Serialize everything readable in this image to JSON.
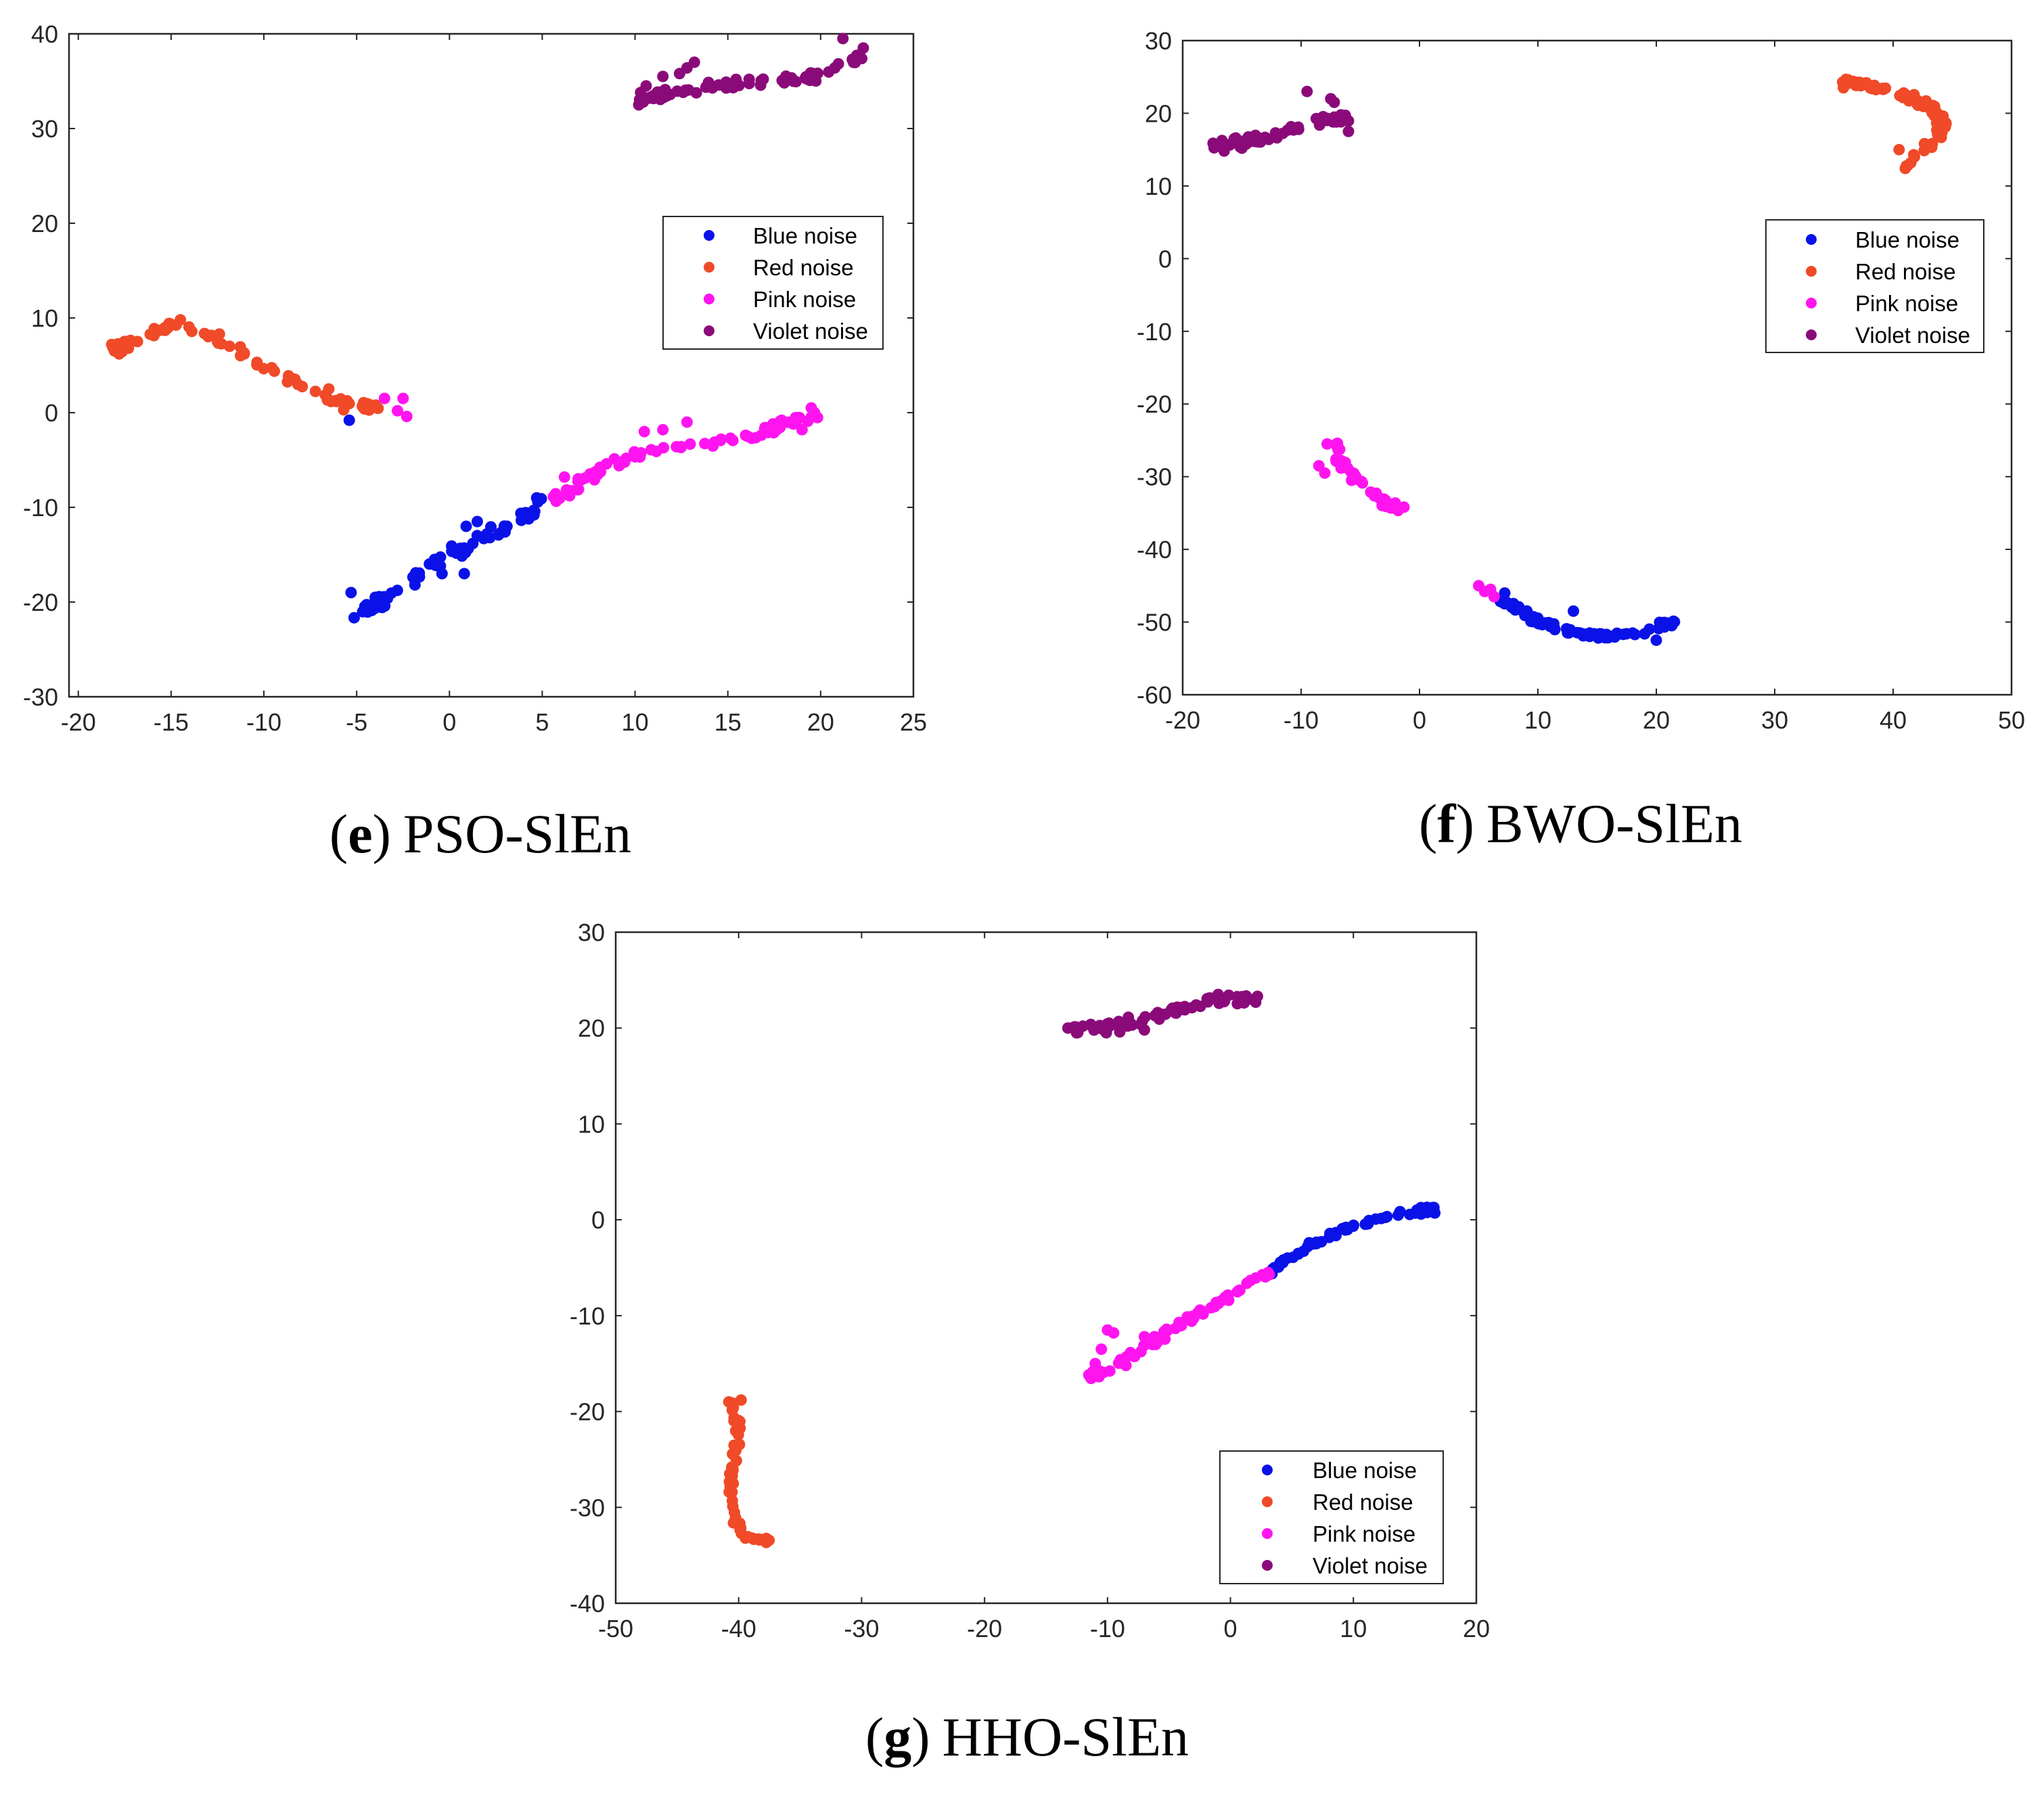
{
  "figure_title": "",
  "colors": {
    "Blue noise": "#0a12e8",
    "Red noise": "#f04a28",
    "Pink noise": "#ff14f0",
    "Violet noise": "#8b0a7a",
    "axes": "#262626"
  },
  "chart_data": [
    {
      "id": "e",
      "type": "scatter",
      "caption": {
        "open": "(",
        "letter": "e",
        "close": ")",
        "text": "PSO-SlEn"
      },
      "xlim": [
        -20.5,
        25
      ],
      "ylim": [
        -30,
        40
      ],
      "xticks": [
        -20,
        -15,
        -10,
        -5,
        0,
        5,
        10,
        15,
        20,
        25
      ],
      "yticks": [
        -30,
        -20,
        -10,
        0,
        10,
        20,
        30,
        40
      ],
      "legend": {
        "position": "right-middle",
        "entries": [
          "Blue noise",
          "Red noise",
          "Pink noise",
          "Violet noise"
        ]
      },
      "series": [
        {
          "name": "Blue noise",
          "curve": [
            [
              -5,
              -21.5
            ],
            [
              -3,
              -19
            ],
            [
              0,
              -15
            ],
            [
              3,
              -12
            ],
            [
              5,
              -9.5
            ]
          ],
          "n": 65,
          "jitter": 0.5,
          "extra": [
            [
              -5.3,
              -19
            ],
            [
              -4,
              -19.5
            ],
            [
              -0.4,
              -17
            ],
            [
              0.8,
              -17
            ],
            [
              0.9,
              -12
            ],
            [
              1.5,
              -11.5
            ],
            [
              -0.8,
              -15.5
            ],
            [
              -5.4,
              -0.8
            ],
            [
              4.7,
              -9
            ]
          ]
        },
        {
          "name": "Red noise",
          "curve": [
            [
              -18,
              6.5
            ],
            [
              -17,
              7.8
            ],
            [
              -15,
              9.2
            ],
            [
              -12.5,
              8
            ],
            [
              -10,
              5
            ],
            [
              -7,
              1.8
            ],
            [
              -5,
              1
            ],
            [
              -4,
              0.5
            ]
          ],
          "n": 75,
          "jitter": 0.35,
          "extra": [
            [
              -18.2,
              7.2
            ],
            [
              -17.8,
              6.2
            ],
            [
              -17.5,
              7.5
            ],
            [
              -17.3,
              6.8
            ],
            [
              -5.7,
              0.3
            ],
            [
              -14.5,
              9.8
            ],
            [
              -6.5,
              2.5
            ]
          ]
        },
        {
          "name": "Pink noise",
          "curve": [
            [
              5.5,
              -9.5
            ],
            [
              7,
              -7.5
            ],
            [
              8,
              -6
            ],
            [
              10,
              -4.5
            ],
            [
              13,
              -3.5
            ],
            [
              16,
              -2.5
            ],
            [
              18.5,
              -1
            ],
            [
              19.8,
              0
            ]
          ],
          "n": 80,
          "jitter": 0.4,
          "extra": [
            [
              -3.5,
              1.5
            ],
            [
              -2.5,
              1.5
            ],
            [
              -2.8,
              0.2
            ],
            [
              -2.3,
              -0.4
            ],
            [
              11.5,
              -1.8
            ],
            [
              12.8,
              -1
            ],
            [
              10.5,
              -2
            ],
            [
              19,
              -1.8
            ],
            [
              19.5,
              0.5
            ],
            [
              6.2,
              -6.8
            ]
          ]
        },
        {
          "name": "Violet noise",
          "curve": [
            [
              10,
              33
            ],
            [
              11.5,
              33.5
            ],
            [
              14,
              34.5
            ],
            [
              17,
              35
            ],
            [
              20,
              35.5
            ],
            [
              22,
              37.5
            ]
          ],
          "n": 70,
          "jitter": 0.45,
          "extra": [
            [
              10.2,
              32.5
            ],
            [
              10.6,
              34.5
            ],
            [
              10.3,
              33.8
            ],
            [
              12.4,
              35.8
            ],
            [
              13.2,
              37
            ],
            [
              11.5,
              35.5
            ],
            [
              21.2,
              39.5
            ],
            [
              22.3,
              38.5
            ],
            [
              14.5,
              34.6
            ],
            [
              12.8,
              36.4
            ]
          ]
        }
      ]
    },
    {
      "id": "f",
      "type": "scatter",
      "caption": {
        "open": "(",
        "letter": "f",
        "close": ")",
        "text": "BWO-SlEn"
      },
      "xlim": [
        -20,
        50
      ],
      "ylim": [
        -60,
        30
      ],
      "xticks": [
        -20,
        -10,
        0,
        10,
        20,
        30,
        40,
        50
      ],
      "yticks": [
        -60,
        -50,
        -40,
        -30,
        -20,
        -10,
        0,
        10,
        20,
        30
      ],
      "legend": {
        "position": "right-middle",
        "entries": [
          "Blue noise",
          "Red noise",
          "Pink noise",
          "Violet noise"
        ]
      },
      "series": [
        {
          "name": "Blue noise",
          "curve": [
            [
              7,
              -47
            ],
            [
              10,
              -50
            ],
            [
              13,
              -51.5
            ],
            [
              16,
              -52
            ],
            [
              19,
              -51.5
            ],
            [
              21.5,
              -49.5
            ]
          ],
          "n": 80,
          "jitter": 0.35,
          "extra": [
            [
              7.2,
              -46
            ],
            [
              13,
              -48.5
            ],
            [
              20,
              -52.5
            ],
            [
              21.3,
              -50.5
            ]
          ]
        },
        {
          "name": "Red noise",
          "curve": [
            [
              35.5,
              24.5
            ],
            [
              38,
              23.8
            ],
            [
              41,
              22.5
            ],
            [
              43.5,
              20.5
            ],
            [
              44.3,
              18
            ],
            [
              43,
              15.5
            ],
            [
              41,
              12.5
            ]
          ],
          "n": 80,
          "jitter": 0.4,
          "extra": [
            [
              35.8,
              23.5
            ],
            [
              40.5,
              15
            ],
            [
              41.8,
              14
            ],
            [
              44,
              17
            ]
          ]
        },
        {
          "name": "Pink noise",
          "curve": [
            [
              -7.5,
              -24.5
            ],
            [
              -6.5,
              -28.5
            ],
            [
              -5,
              -31
            ],
            [
              -3,
              -33.5
            ],
            [
              -1.5,
              -34.5
            ]
          ],
          "n": 50,
          "jitter": 0.4,
          "extra": [
            [
              -8,
              -29.5
            ],
            [
              -8.5,
              -28.5
            ],
            [
              -7.8,
              -25.5
            ],
            [
              5,
              -45
            ],
            [
              5.5,
              -45.8
            ],
            [
              6.3,
              -46.5
            ],
            [
              6,
              -45.5
            ]
          ]
        },
        {
          "name": "Violet noise",
          "curve": [
            [
              -17,
              15.5
            ],
            [
              -14,
              16.5
            ],
            [
              -11,
              17.5
            ],
            [
              -8,
              19
            ],
            [
              -6,
              19.5
            ]
          ],
          "n": 70,
          "jitter": 0.6,
          "extra": [
            [
              -9.5,
              23
            ],
            [
              -7.2,
              21.5
            ],
            [
              -6,
              17.5
            ],
            [
              -7.5,
              22
            ],
            [
              -16.5,
              14.8
            ],
            [
              -15,
              15.2
            ]
          ]
        }
      ]
    },
    {
      "id": "g",
      "type": "scatter",
      "caption": {
        "open": "(",
        "letter": "g",
        "close": ")",
        "text": "HHO-SlEn"
      },
      "xlim": [
        -50,
        20
      ],
      "ylim": [
        -40,
        30
      ],
      "xticks": [
        -50,
        -40,
        -30,
        -20,
        -10,
        0,
        10,
        20
      ],
      "yticks": [
        -40,
        -30,
        -20,
        -10,
        0,
        10,
        20,
        30
      ],
      "legend": {
        "position": "bottom-right",
        "entries": [
          "Blue noise",
          "Red noise",
          "Pink noise",
          "Violet noise"
        ]
      },
      "series": [
        {
          "name": "Blue noise",
          "curve": [
            [
              3,
              -5.5
            ],
            [
              6,
              -3
            ],
            [
              9,
              -1
            ],
            [
              12,
              0
            ],
            [
              15,
              1
            ],
            [
              16.5,
              1
            ]
          ],
          "n": 60,
          "jitter": 0.3,
          "extra": [
            [
              16,
              1.3
            ],
            [
              15.5,
              0.6
            ]
          ]
        },
        {
          "name": "Red noise",
          "curve": [
            [
              -40.5,
              -18.5
            ],
            [
              -40,
              -22
            ],
            [
              -40.5,
              -26
            ],
            [
              -40.7,
              -30
            ],
            [
              -39.8,
              -33
            ],
            [
              -37.5,
              -33.5
            ]
          ],
          "n": 55,
          "jitter": 0.25,
          "extra": [
            [
              -40.8,
              -19
            ],
            [
              -39.8,
              -18.8
            ]
          ]
        },
        {
          "name": "Pink noise",
          "curve": [
            [
              -11.5,
              -16.5
            ],
            [
              -10,
              -15.5
            ],
            [
              -6,
              -12.5
            ],
            [
              -3,
              -10
            ],
            [
              0,
              -8
            ],
            [
              3,
              -5.5
            ]
          ],
          "n": 70,
          "jitter": 0.35,
          "extra": [
            [
              -10,
              -11.5
            ],
            [
              -9.5,
              -11.8
            ],
            [
              -10.5,
              -13.5
            ],
            [
              -7,
              -12.2
            ],
            [
              -11,
              -15
            ],
            [
              -8.5,
              -15.2
            ]
          ]
        },
        {
          "name": "Violet noise",
          "curve": [
            [
              -13,
              20
            ],
            [
              -10,
              20
            ],
            [
              -7,
              21
            ],
            [
              -4,
              22
            ],
            [
              -1,
              23
            ],
            [
              2,
              23
            ]
          ],
          "n": 70,
          "jitter": 0.5,
          "extra": [
            [
              -1,
              23.5
            ],
            [
              -7,
              19.8
            ],
            [
              -12,
              20.2
            ],
            [
              -9,
              19.6
            ]
          ]
        }
      ]
    }
  ]
}
